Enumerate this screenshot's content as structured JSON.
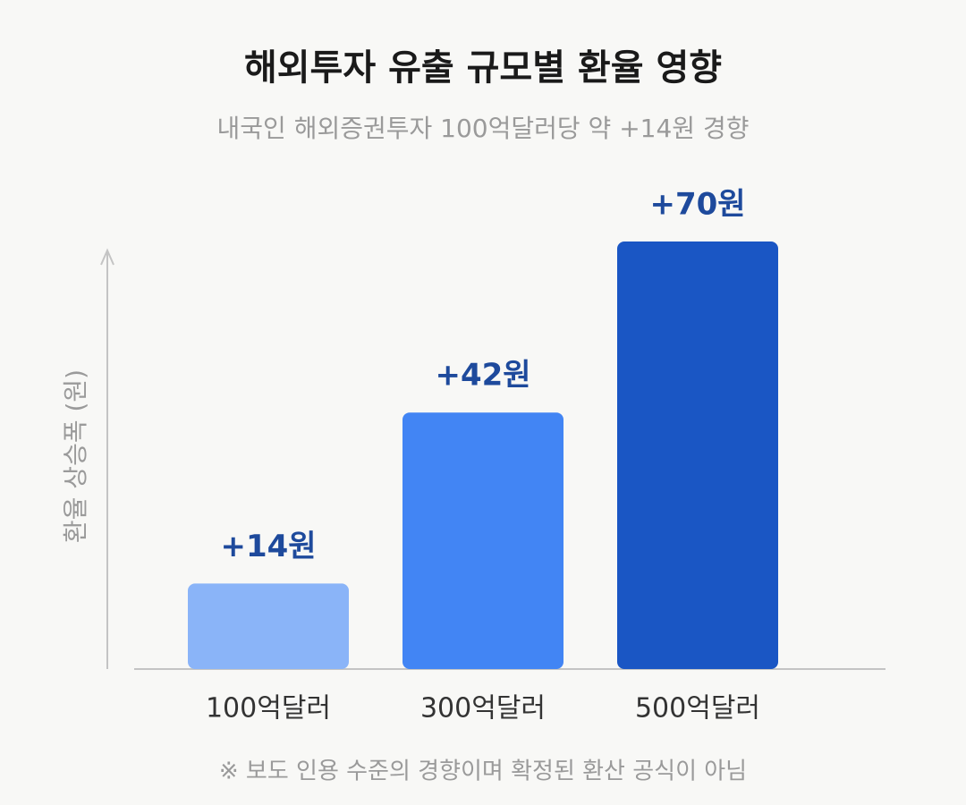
{
  "chart_data": {
    "type": "bar",
    "title": "해외투자 유출 규모별 환율 영향",
    "subtitle": "내국인 해외증권투자 100억달러당 약 +14원 경향",
    "y_label": "환율 상승폭 (원)",
    "categories": [
      "100억달러",
      "300억달러",
      "500억달러"
    ],
    "values": [
      14,
      42,
      70
    ],
    "value_labels": [
      "+14원",
      "+42원",
      "+70원"
    ],
    "colors": [
      "#8ab4f8",
      "#4285f4",
      "#1a56c4"
    ],
    "ylim": [
      0,
      70
    ],
    "footnote": "※ 보도 인용 수준의 경향이며 확정된 환산 공식이 아님"
  }
}
